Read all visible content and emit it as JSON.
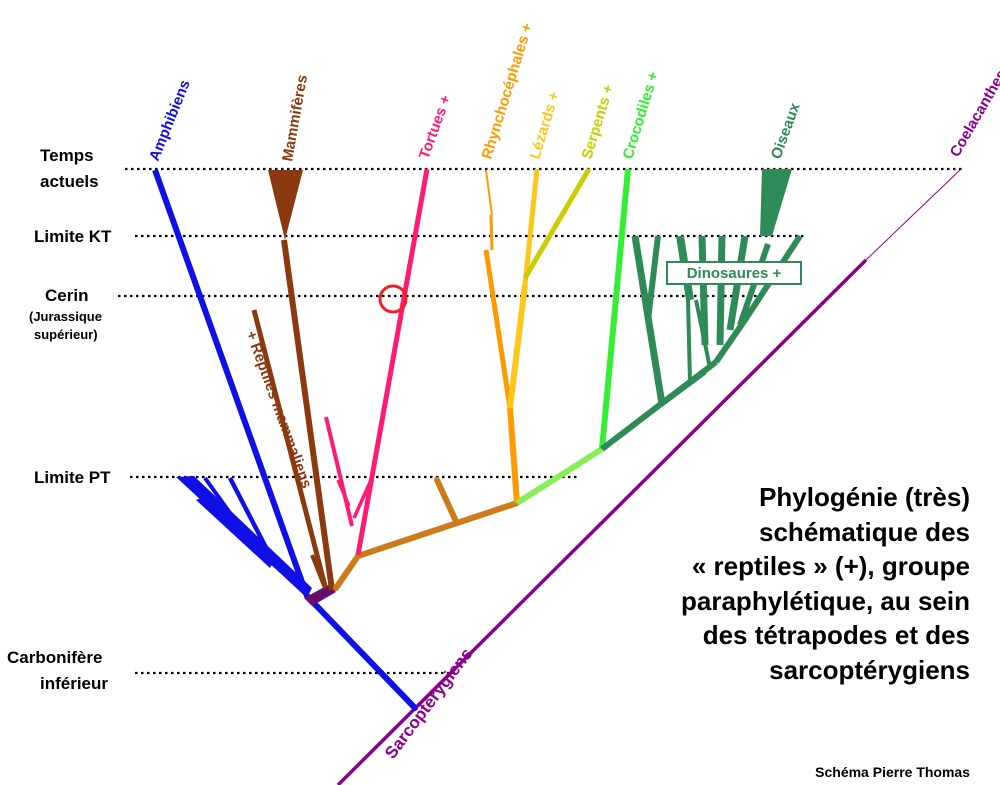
{
  "title": {
    "lines": [
      "Phylogénie (très)",
      "schématique des",
      "« reptiles » (+), groupe",
      "paraphylétique, au sein",
      "des tétrapodes et des",
      "sarcoptérygiens"
    ]
  },
  "credit": "Schéma Pierre Thomas",
  "time_marks": {
    "present": {
      "line1": "Temps",
      "line2": "actuels"
    },
    "kt": "Limite KT",
    "cerin": {
      "line1": "Cerin",
      "line2": "(Jurassique",
      "line3": "supérieur)"
    },
    "pt": "Limite PT",
    "carbon": {
      "line1": "Carbonifère",
      "line2": "inférieur"
    }
  },
  "taxa": {
    "amphibiens": "Amphibiens",
    "mammiferes": "Mammifères",
    "tortues": "Tortues +",
    "rhyncho": "Rhynchocéphales +",
    "lezards": "Lézards +",
    "serpents": "Serpents +",
    "crocodiles": "Crocodiles +",
    "oiseaux": "Oiseaux",
    "coelacanthes": "Coelacanthes",
    "sarco": "Sarcoptérygiens",
    "reptiles_mamm": "+ Reptiles mammaliens",
    "dinosaures": "Dinosaures +"
  },
  "colors": {
    "amphibiens": "#1010e6",
    "mammiferes": "#8b3a0f",
    "tortues": "#ff1a75",
    "rhyncho": "#ff9900",
    "lezards": "#ffc61a",
    "serpents": "#cccc00",
    "crocodiles": "#33ee33",
    "crocodiles_stem": "#88ee55",
    "oiseaux": "#2e8b57",
    "coelacanthes": "#8b008b",
    "reptile_stem": "#cc7a1a",
    "marker": "#ee2222"
  }
}
